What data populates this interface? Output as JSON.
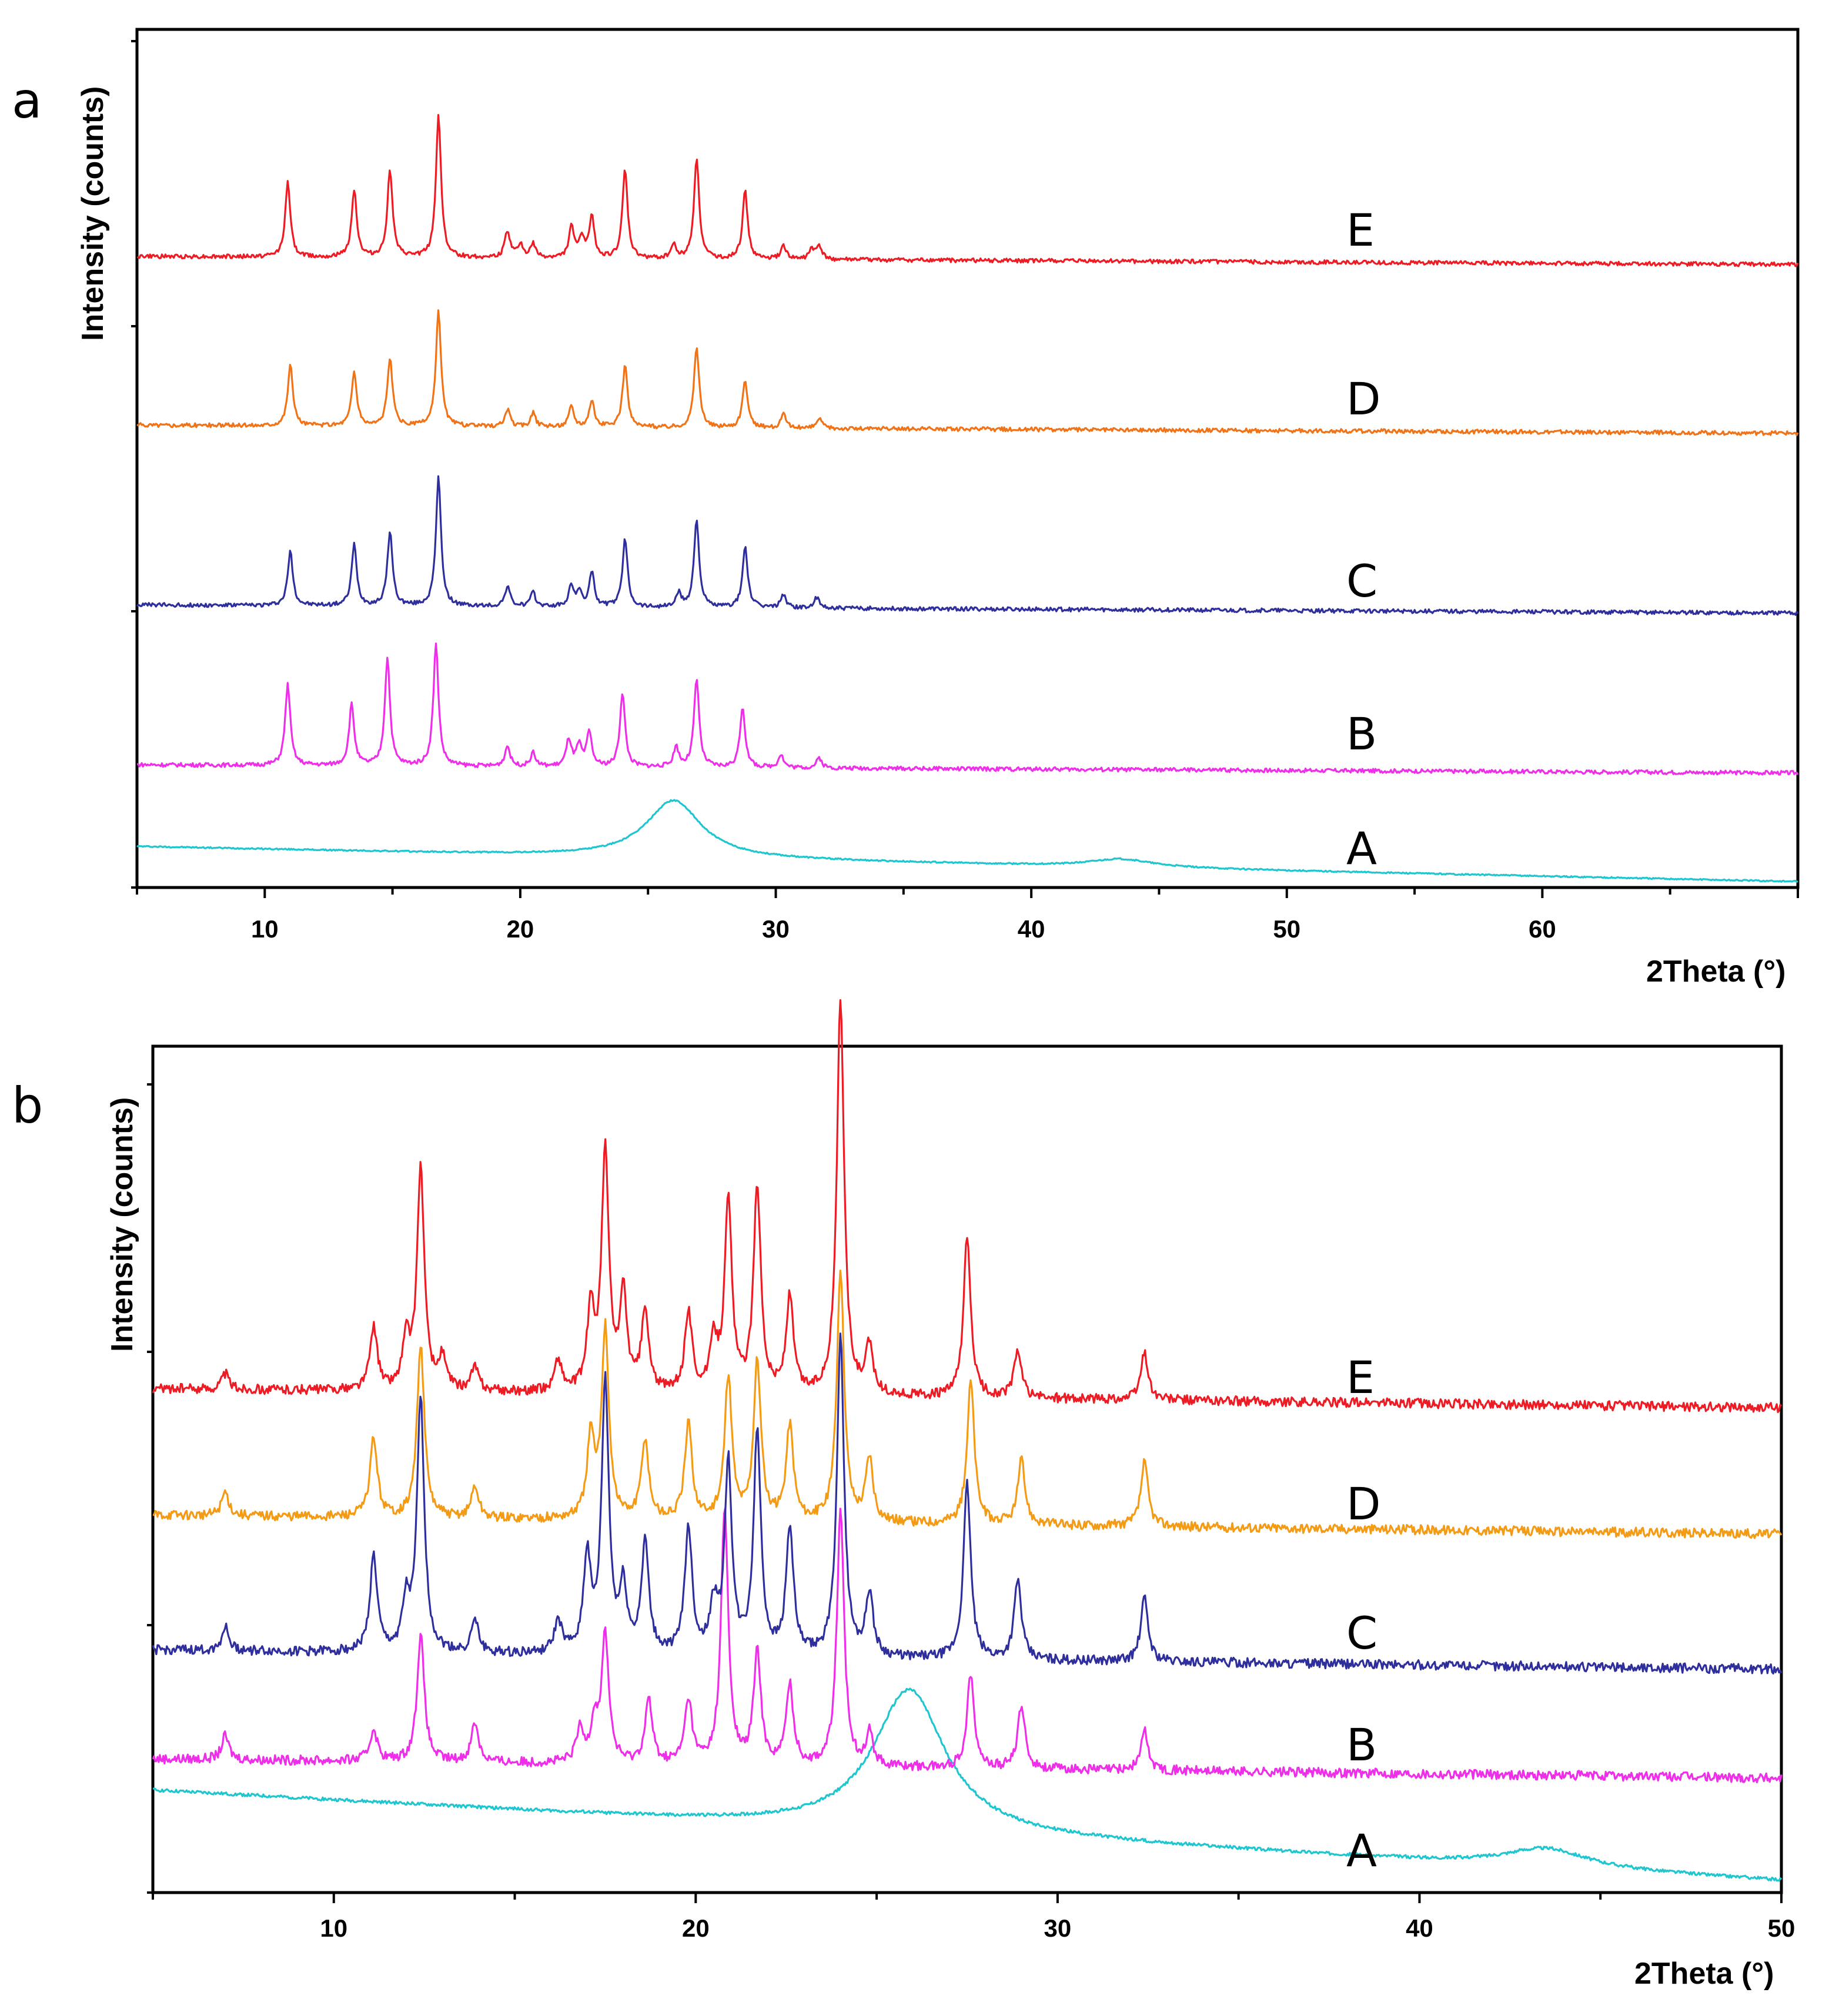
{
  "chart_data": [
    {
      "panel": "a",
      "type": "line",
      "xlabel": "2Theta (°)",
      "ylabel": "Intensity (counts)",
      "xlim": [
        5,
        70
      ],
      "x_ticks": [
        10,
        20,
        30,
        40,
        50,
        60
      ],
      "series": [
        {
          "name": "A",
          "color": "#1fc6cf",
          "baseline_start": 0.04,
          "baseline_end": 0.0,
          "peaks": [
            [
              26.0,
              0.085,
              1.3
            ],
            [
              43.5,
              0.012,
              1.5
            ]
          ]
        },
        {
          "name": "B",
          "color": "#ee2ee8",
          "baseline_start": 0.0,
          "baseline_end": 0.0,
          "peaks": [
            [
              10.9,
              0.12,
              0.12
            ],
            [
              13.4,
              0.09,
              0.12
            ],
            [
              14.8,
              0.16,
              0.12
            ],
            [
              16.7,
              0.18,
              0.12
            ],
            [
              19.5,
              0.03,
              0.12
            ],
            [
              20.5,
              0.02,
              0.12
            ],
            [
              21.9,
              0.04,
              0.12
            ],
            [
              22.3,
              0.03,
              0.12
            ],
            [
              22.7,
              0.05,
              0.12
            ],
            [
              24.0,
              0.11,
              0.12
            ],
            [
              26.1,
              0.03,
              0.12
            ],
            [
              26.9,
              0.13,
              0.12
            ],
            [
              28.7,
              0.09,
              0.12
            ],
            [
              30.2,
              0.02,
              0.12
            ],
            [
              31.7,
              0.015,
              0.12
            ]
          ]
        },
        {
          "name": "C",
          "color": "#2e2e9c",
          "baseline_start": 0.0,
          "baseline_end": 0.0,
          "peaks": [
            [
              11.0,
              0.08,
              0.12
            ],
            [
              13.5,
              0.09,
              0.12
            ],
            [
              14.9,
              0.11,
              0.12
            ],
            [
              16.8,
              0.19,
              0.12
            ],
            [
              19.5,
              0.03,
              0.12
            ],
            [
              20.5,
              0.02,
              0.12
            ],
            [
              22.0,
              0.03,
              0.12
            ],
            [
              22.3,
              0.02,
              0.12
            ],
            [
              22.8,
              0.05,
              0.12
            ],
            [
              24.1,
              0.1,
              0.12
            ],
            [
              26.2,
              0.02,
              0.12
            ],
            [
              26.9,
              0.13,
              0.12
            ],
            [
              28.8,
              0.09,
              0.12
            ],
            [
              30.3,
              0.02,
              0.12
            ],
            [
              31.6,
              0.015,
              0.12
            ]
          ]
        },
        {
          "name": "D",
          "color": "#f07318",
          "baseline_start": 0.0,
          "baseline_end": 0.0,
          "peaks": [
            [
              11.0,
              0.09,
              0.12
            ],
            [
              13.5,
              0.08,
              0.12
            ],
            [
              14.9,
              0.1,
              0.12
            ],
            [
              16.8,
              0.17,
              0.12
            ],
            [
              19.5,
              0.025,
              0.12
            ],
            [
              20.5,
              0.02,
              0.12
            ],
            [
              22.0,
              0.03,
              0.12
            ],
            [
              22.8,
              0.04,
              0.12
            ],
            [
              24.1,
              0.09,
              0.12
            ],
            [
              26.9,
              0.12,
              0.12
            ],
            [
              28.8,
              0.07,
              0.12
            ],
            [
              30.3,
              0.02,
              0.12
            ],
            [
              31.7,
              0.015,
              0.12
            ]
          ]
        },
        {
          "name": "E",
          "color": "#ed1c24",
          "baseline_start": 0.0,
          "baseline_end": 0.0,
          "peaks": [
            [
              10.9,
              0.11,
              0.12
            ],
            [
              13.5,
              0.1,
              0.12
            ],
            [
              14.9,
              0.13,
              0.12
            ],
            [
              16.8,
              0.21,
              0.12
            ],
            [
              19.5,
              0.04,
              0.12
            ],
            [
              20.0,
              0.02,
              0.12
            ],
            [
              20.5,
              0.02,
              0.12
            ],
            [
              22.0,
              0.045,
              0.12
            ],
            [
              22.4,
              0.03,
              0.12
            ],
            [
              22.8,
              0.06,
              0.12
            ],
            [
              24.1,
              0.13,
              0.12
            ],
            [
              26.0,
              0.02,
              0.12
            ],
            [
              26.9,
              0.15,
              0.12
            ],
            [
              28.8,
              0.1,
              0.12
            ],
            [
              30.3,
              0.02,
              0.12
            ],
            [
              31.4,
              0.015,
              0.12
            ],
            [
              31.7,
              0.02,
              0.12
            ]
          ]
        }
      ]
    },
    {
      "panel": "b",
      "type": "line",
      "xlabel": "2Theta (°)",
      "ylabel": "Intensity (counts)",
      "xlim": [
        5,
        50
      ],
      "x_ticks": [
        10,
        20,
        30,
        40,
        50
      ],
      "series": [
        {
          "name": "A",
          "color": "#1fc6cf",
          "baseline_start": 0.045,
          "baseline_end": 0.0,
          "peaks": [
            [
              25.9,
              0.09,
              1.2
            ],
            [
              43.5,
              0.012,
              1.4
            ]
          ]
        },
        {
          "name": "B",
          "color": "#ee2ee8",
          "baseline_start": 0.0,
          "baseline_end": 0.0,
          "peaks": [
            [
              7.0,
              0.015,
              0.12
            ],
            [
              11.1,
              0.02,
              0.12
            ],
            [
              12.4,
              0.08,
              0.12
            ],
            [
              13.9,
              0.025,
              0.12
            ],
            [
              16.8,
              0.02,
              0.12
            ],
            [
              17.2,
              0.025,
              0.12
            ],
            [
              17.5,
              0.08,
              0.12
            ],
            [
              18.7,
              0.04,
              0.12
            ],
            [
              19.8,
              0.04,
              0.12
            ],
            [
              20.8,
              0.16,
              0.12
            ],
            [
              21.7,
              0.07,
              0.12
            ],
            [
              22.6,
              0.05,
              0.12
            ],
            [
              24.0,
              0.16,
              0.12
            ],
            [
              24.8,
              0.02,
              0.12
            ],
            [
              27.6,
              0.06,
              0.12
            ],
            [
              29.0,
              0.04,
              0.12
            ],
            [
              32.4,
              0.025,
              0.12
            ]
          ]
        },
        {
          "name": "C",
          "color": "#2e2e9c",
          "baseline_start": 0.0,
          "baseline_end": 0.0,
          "peaks": [
            [
              7.0,
              0.015,
              0.12
            ],
            [
              11.1,
              0.06,
              0.12
            ],
            [
              12.0,
              0.03,
              0.12
            ],
            [
              12.4,
              0.16,
              0.12
            ],
            [
              13.9,
              0.02,
              0.12
            ],
            [
              16.2,
              0.02,
              0.12
            ],
            [
              17.0,
              0.06,
              0.12
            ],
            [
              17.5,
              0.17,
              0.12
            ],
            [
              18.0,
              0.04,
              0.12
            ],
            [
              18.6,
              0.07,
              0.12
            ],
            [
              19.8,
              0.08,
              0.12
            ],
            [
              20.5,
              0.03,
              0.12
            ],
            [
              20.9,
              0.12,
              0.12
            ],
            [
              21.7,
              0.14,
              0.12
            ],
            [
              22.6,
              0.08,
              0.12
            ],
            [
              24.0,
              0.2,
              0.12
            ],
            [
              24.8,
              0.04,
              0.12
            ],
            [
              27.5,
              0.11,
              0.12
            ],
            [
              28.9,
              0.05,
              0.12
            ],
            [
              32.4,
              0.04,
              0.12
            ]
          ]
        },
        {
          "name": "D",
          "color": "#f49b16",
          "baseline_start": 0.0,
          "baseline_end": 0.0,
          "peaks": [
            [
              7.0,
              0.015,
              0.12
            ],
            [
              11.1,
              0.05,
              0.12
            ],
            [
              12.4,
              0.11,
              0.12
            ],
            [
              13.9,
              0.02,
              0.12
            ],
            [
              17.1,
              0.05,
              0.12
            ],
            [
              17.5,
              0.12,
              0.12
            ],
            [
              18.6,
              0.05,
              0.12
            ],
            [
              19.8,
              0.06,
              0.12
            ],
            [
              20.9,
              0.09,
              0.12
            ],
            [
              21.7,
              0.1,
              0.12
            ],
            [
              22.6,
              0.06,
              0.12
            ],
            [
              24.0,
              0.16,
              0.12
            ],
            [
              24.8,
              0.04,
              0.12
            ],
            [
              27.6,
              0.09,
              0.12
            ],
            [
              29.0,
              0.04,
              0.12
            ],
            [
              32.4,
              0.04,
              0.12
            ]
          ]
        },
        {
          "name": "E",
          "color": "#ed1c24",
          "baseline_start": 0.0,
          "baseline_end": 0.0,
          "peaks": [
            [
              7.0,
              0.01,
              0.12
            ],
            [
              11.1,
              0.04,
              0.12
            ],
            [
              12.0,
              0.03,
              0.12
            ],
            [
              12.4,
              0.14,
              0.12
            ],
            [
              13.0,
              0.02,
              0.12
            ],
            [
              13.9,
              0.015,
              0.12
            ],
            [
              16.2,
              0.02,
              0.12
            ],
            [
              17.1,
              0.05,
              0.12
            ],
            [
              17.5,
              0.15,
              0.12
            ],
            [
              18.0,
              0.06,
              0.12
            ],
            [
              18.6,
              0.05,
              0.12
            ],
            [
              19.8,
              0.05,
              0.12
            ],
            [
              20.5,
              0.03,
              0.12
            ],
            [
              20.9,
              0.12,
              0.12
            ],
            [
              21.7,
              0.13,
              0.12
            ],
            [
              22.6,
              0.06,
              0.12
            ],
            [
              24.0,
              0.25,
              0.12
            ],
            [
              24.8,
              0.03,
              0.12
            ],
            [
              27.5,
              0.1,
              0.12
            ],
            [
              28.9,
              0.03,
              0.12
            ],
            [
              32.4,
              0.03,
              0.12
            ]
          ]
        }
      ]
    }
  ],
  "panel_labels": {
    "a": "a",
    "b": "b"
  }
}
